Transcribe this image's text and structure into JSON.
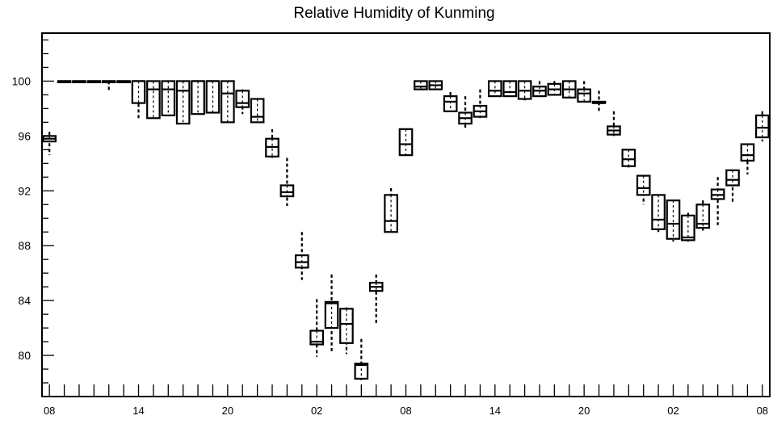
{
  "chart_data": {
    "type": "boxplot",
    "title": "Relative Humidity of Kunming",
    "xlabel": "",
    "ylabel": "",
    "ylim": [
      77,
      103.5
    ],
    "yticks": [
      80,
      84,
      88,
      92,
      96,
      100
    ],
    "xlim": [
      -0.5,
      48.5
    ],
    "xtick_positions": [
      0,
      6,
      12,
      18,
      24,
      30,
      36,
      42,
      48
    ],
    "xtick_labels": [
      "08",
      "14",
      "20",
      "02",
      "08",
      "14",
      "20",
      "02",
      "08"
    ],
    "grid": false,
    "legend": "none",
    "boxes": [
      {
        "x": 0,
        "wl": 94.6,
        "q1": 95.6,
        "med": 95.8,
        "q3": 96.0,
        "wh": 96.3
      },
      {
        "x": 1,
        "wl": 100,
        "q1": 100,
        "med": 100,
        "q3": 100,
        "wh": 100
      },
      {
        "x": 2,
        "wl": 100,
        "q1": 100,
        "med": 100,
        "q3": 100,
        "wh": 100
      },
      {
        "x": 3,
        "wl": 100,
        "q1": 100,
        "med": 100,
        "q3": 100,
        "wh": 100
      },
      {
        "x": 4,
        "wl": 99.3,
        "q1": 100,
        "med": 100,
        "q3": 100,
        "wh": 100
      },
      {
        "x": 5,
        "wl": 100,
        "q1": 100,
        "med": 100,
        "q3": 100,
        "wh": 100
      },
      {
        "x": 6,
        "wl": 97.3,
        "q1": 98.4,
        "med": 100,
        "q3": 100,
        "wh": 100
      },
      {
        "x": 7,
        "wl": 97.8,
        "q1": 97.3,
        "med": 99.4,
        "q3": 100,
        "wh": 100
      },
      {
        "x": 8,
        "wl": 98.0,
        "q1": 97.5,
        "med": 99.4,
        "q3": 100,
        "wh": 100
      },
      {
        "x": 9,
        "wl": 97.8,
        "q1": 96.9,
        "med": 99.3,
        "q3": 100,
        "wh": 100
      },
      {
        "x": 10,
        "wl": 98.5,
        "q1": 97.6,
        "med": 100,
        "q3": 100,
        "wh": 100
      },
      {
        "x": 11,
        "wl": 98.5,
        "q1": 97.7,
        "med": 100,
        "q3": 100,
        "wh": 100
      },
      {
        "x": 12,
        "wl": 97.1,
        "q1": 97.0,
        "med": 99.1,
        "q3": 100,
        "wh": 100
      },
      {
        "x": 13,
        "wl": 97.6,
        "q1": 98.1,
        "med": 98.4,
        "q3": 99.3,
        "wh": 99.4
      },
      {
        "x": 14,
        "wl": 97.1,
        "q1": 97.0,
        "med": 97.4,
        "q3": 98.7,
        "wh": 98.7
      },
      {
        "x": 15,
        "wl": 94.4,
        "q1": 94.5,
        "med": 95.2,
        "q3": 95.8,
        "wh": 96.5
      },
      {
        "x": 16,
        "wl": 90.9,
        "q1": 91.6,
        "med": 91.9,
        "q3": 92.4,
        "wh": 94.4
      },
      {
        "x": 17,
        "wl": 85.5,
        "q1": 86.4,
        "med": 86.8,
        "q3": 87.3,
        "wh": 89.0
      },
      {
        "x": 18,
        "wl": 79.9,
        "q1": 80.8,
        "med": 81.0,
        "q3": 81.8,
        "wh": 84.1
      },
      {
        "x": 19,
        "wl": 80.3,
        "q1": 82.0,
        "med": 83.8,
        "q3": 83.9,
        "wh": 85.9
      },
      {
        "x": 20,
        "wl": 80.1,
        "q1": 80.9,
        "med": 82.3,
        "q3": 83.4,
        "wh": 83.5
      },
      {
        "x": 21,
        "wl": 78.2,
        "q1": 78.3,
        "med": 79.3,
        "q3": 79.4,
        "wh": 81.2
      },
      {
        "x": 22,
        "wl": 82.3,
        "q1": 84.7,
        "med": 85.0,
        "q3": 85.3,
        "wh": 85.9
      },
      {
        "x": 23,
        "wl": 89.0,
        "q1": 89.0,
        "med": 89.8,
        "q3": 91.7,
        "wh": 92.2
      },
      {
        "x": 24,
        "wl": 94.5,
        "q1": 94.6,
        "med": 95.4,
        "q3": 96.5,
        "wh": 96.5
      },
      {
        "x": 25,
        "wl": 99.4,
        "q1": 99.4,
        "med": 99.6,
        "q3": 100,
        "wh": 100
      },
      {
        "x": 26,
        "wl": 99.4,
        "q1": 99.4,
        "med": 99.7,
        "q3": 100,
        "wh": 100
      },
      {
        "x": 27,
        "wl": 97.8,
        "q1": 97.8,
        "med": 98.5,
        "q3": 98.9,
        "wh": 99.2
      },
      {
        "x": 28,
        "wl": 96.5,
        "q1": 96.9,
        "med": 97.3,
        "q3": 97.7,
        "wh": 98.9
      },
      {
        "x": 29,
        "wl": 97.3,
        "q1": 97.4,
        "med": 97.8,
        "q3": 98.2,
        "wh": 99.4
      },
      {
        "x": 30,
        "wl": 98.8,
        "q1": 98.9,
        "med": 99.3,
        "q3": 100,
        "wh": 100
      },
      {
        "x": 31,
        "wl": 98.8,
        "q1": 98.9,
        "med": 99.2,
        "q3": 100,
        "wh": 100
      },
      {
        "x": 32,
        "wl": 98.6,
        "q1": 98.7,
        "med": 99.3,
        "q3": 100,
        "wh": 100
      },
      {
        "x": 33,
        "wl": 98.8,
        "q1": 98.9,
        "med": 99.3,
        "q3": 99.6,
        "wh": 100
      },
      {
        "x": 34,
        "wl": 98.9,
        "q1": 99.0,
        "med": 99.4,
        "q3": 99.8,
        "wh": 100
      },
      {
        "x": 35,
        "wl": 98.8,
        "q1": 98.8,
        "med": 99.4,
        "q3": 100,
        "wh": 100
      },
      {
        "x": 36,
        "wl": 98.4,
        "q1": 98.5,
        "med": 99.1,
        "q3": 99.4,
        "wh": 100
      },
      {
        "x": 37,
        "wl": 97.8,
        "q1": 98.4,
        "med": 98.4,
        "q3": 98.5,
        "wh": 99.3
      },
      {
        "x": 38,
        "wl": 96.0,
        "q1": 96.1,
        "med": 96.4,
        "q3": 96.7,
        "wh": 97.8
      },
      {
        "x": 39,
        "wl": 93.7,
        "q1": 93.8,
        "med": 94.3,
        "q3": 95.0,
        "wh": 95.0
      },
      {
        "x": 40,
        "wl": 91.0,
        "q1": 91.7,
        "med": 92.2,
        "q3": 93.1,
        "wh": 93.1
      },
      {
        "x": 41,
        "wl": 89.0,
        "q1": 89.2,
        "med": 89.9,
        "q3": 91.7,
        "wh": 91.7
      },
      {
        "x": 42,
        "wl": 88.3,
        "q1": 88.5,
        "med": 89.6,
        "q3": 91.3,
        "wh": 91.3
      },
      {
        "x": 43,
        "wl": 88.3,
        "q1": 88.4,
        "med": 88.6,
        "q3": 90.2,
        "wh": 90.4
      },
      {
        "x": 44,
        "wl": 89.1,
        "q1": 89.3,
        "med": 89.6,
        "q3": 91.0,
        "wh": 91.3
      },
      {
        "x": 45,
        "wl": 89.5,
        "q1": 91.4,
        "med": 91.7,
        "q3": 92.1,
        "wh": 93.0
      },
      {
        "x": 46,
        "wl": 91.2,
        "q1": 92.4,
        "med": 92.8,
        "q3": 93.5,
        "wh": 93.5
      },
      {
        "x": 47,
        "wl": 93.2,
        "q1": 94.2,
        "med": 94.6,
        "q3": 95.4,
        "wh": 95.4
      },
      {
        "x": 48,
        "wl": 95.6,
        "q1": 95.9,
        "med": 96.6,
        "q3": 97.5,
        "wh": 97.8
      }
    ]
  }
}
